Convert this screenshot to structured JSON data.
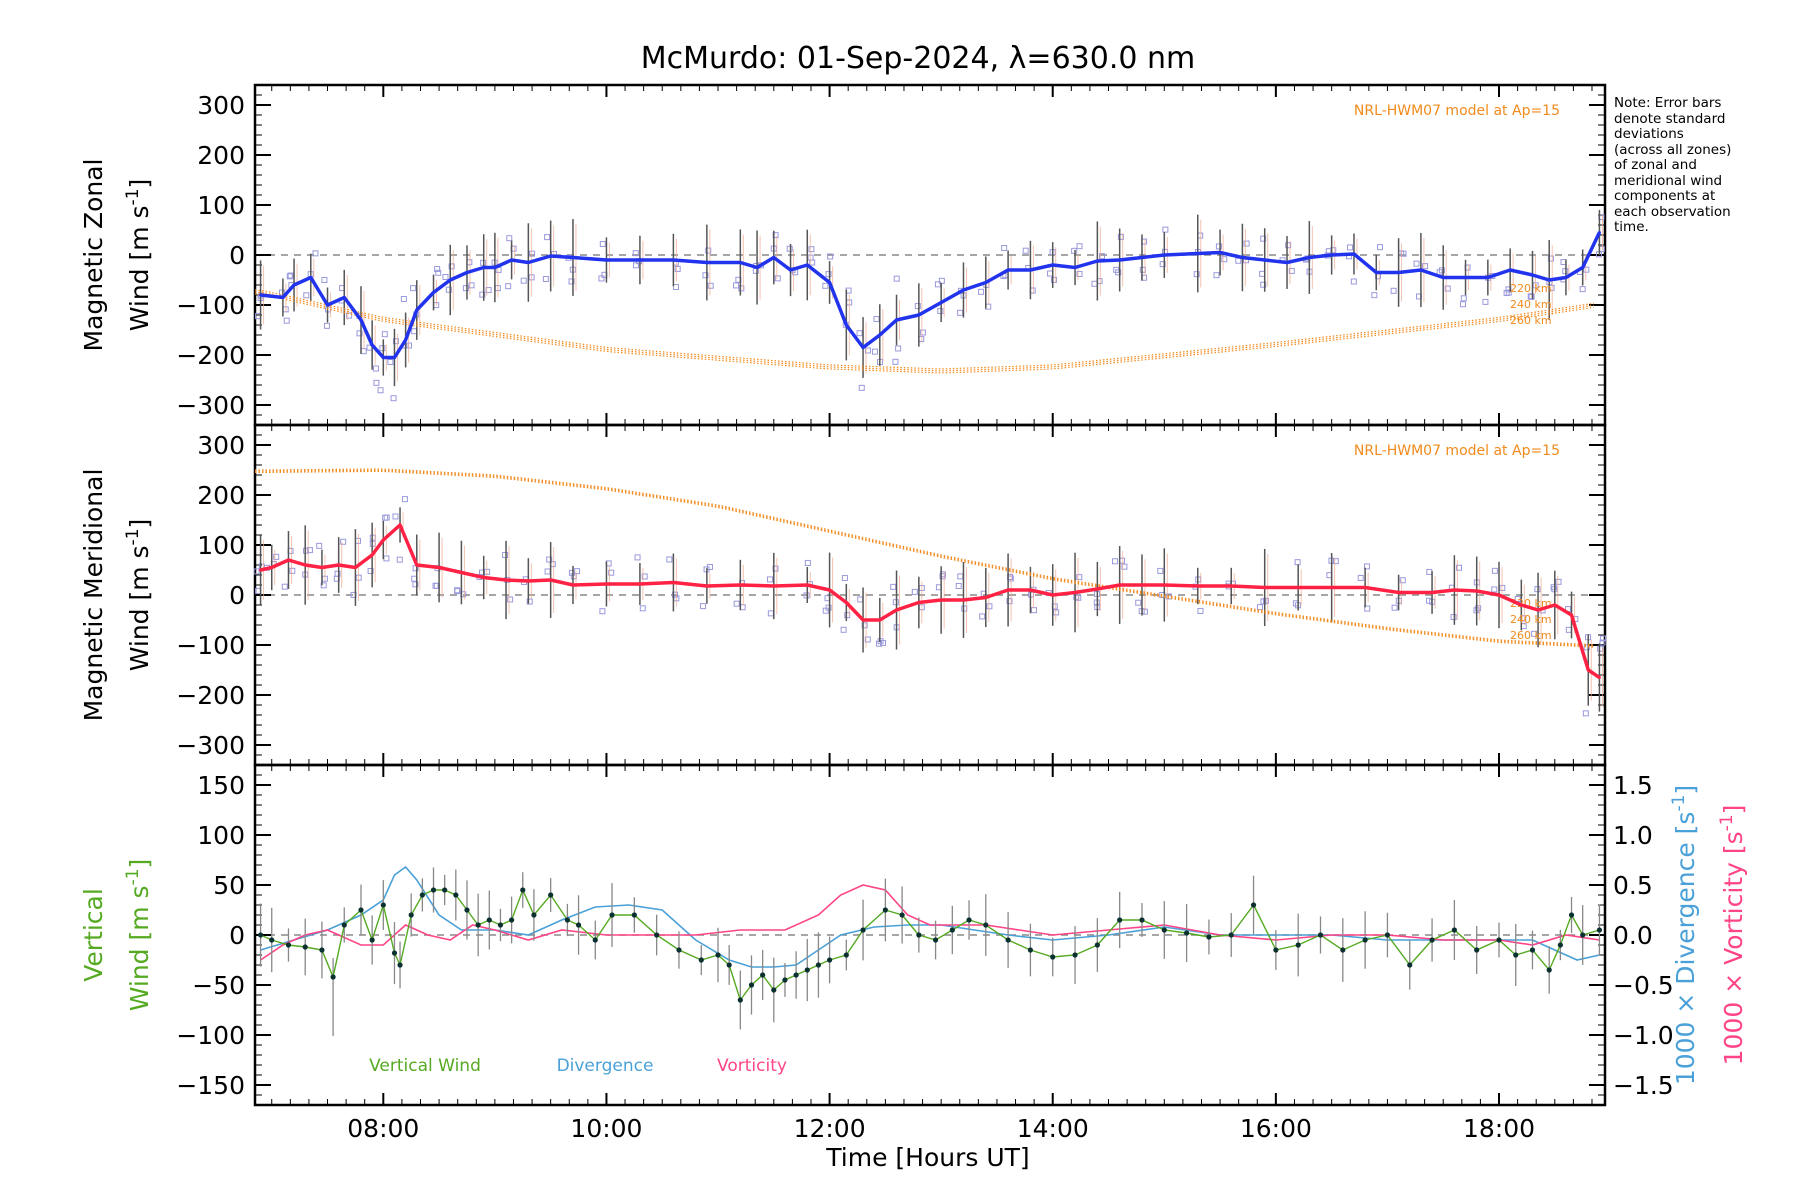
{
  "title": "McMurdo: 01-Sep-2024, λ=630.0 nm",
  "note_lines": [
    "Note: Error bars",
    "denote standard",
    "deviations",
    "(across all zones)",
    "of zonal and",
    "meridional wind",
    "components at",
    "each observation",
    "time."
  ],
  "colors": {
    "zonal": "#2233ee",
    "meridional": "#ff2244",
    "model": "#f28a1c",
    "vertical": "#55aa22",
    "divergence": "#4aa0d8",
    "vorticity": "#ff4488",
    "zone_points": "#9999dd",
    "errorbar": "#555555",
    "axis": "#000000"
  },
  "x_axis": {
    "label": "Time [Hours UT]",
    "range_hours": [
      6.85,
      18.95
    ],
    "ticks": [
      {
        "value": 8,
        "label": "08:00"
      },
      {
        "value": 10,
        "label": "10:00"
      },
      {
        "value": 12,
        "label": "12:00"
      },
      {
        "value": 14,
        "label": "14:00"
      },
      {
        "value": 16,
        "label": "16:00"
      },
      {
        "value": 18,
        "label": "18:00"
      }
    ]
  },
  "chart_data": [
    {
      "type": "line",
      "panel": "zonal",
      "ylabel_line1": "Magnetic Zonal",
      "ylabel_line2": "Wind [m s",
      "ylabel_sup": "-1",
      "ylabel_close": "]",
      "ylim": [
        -340,
        340
      ],
      "yticks": [
        -300,
        -200,
        -100,
        0,
        100,
        200,
        300
      ],
      "model_label": "NRL-HWM07 model at Ap=15",
      "altitude_labels": [
        "220 km",
        "240 km",
        "260 km"
      ],
      "series": [
        {
          "x": [
            6.9,
            7.1,
            7.2,
            7.35,
            7.5,
            7.65,
            7.8,
            7.9,
            8.0,
            8.1,
            8.2,
            8.3,
            8.45,
            8.6,
            8.75,
            8.9,
            9.0,
            9.15,
            9.3,
            9.5,
            9.7,
            10.0,
            10.3,
            10.6,
            10.9,
            11.2,
            11.35,
            11.5,
            11.65,
            11.8,
            12.0,
            12.15,
            12.3,
            12.45,
            12.6,
            12.8,
            13.0,
            13.2,
            13.4,
            13.6,
            13.8,
            14.0,
            14.2,
            14.4,
            14.6,
            14.8,
            15.0,
            15.3,
            15.5,
            15.7,
            15.9,
            16.1,
            16.3,
            16.5,
            16.7,
            16.9,
            17.1,
            17.3,
            17.5,
            17.7,
            17.9,
            18.1,
            18.3,
            18.45,
            18.6,
            18.75,
            18.9
          ],
          "y": [
            -80,
            -85,
            -60,
            -45,
            -100,
            -85,
            -130,
            -180,
            -205,
            -205,
            -170,
            -110,
            -75,
            -50,
            -35,
            -25,
            -25,
            -10,
            -15,
            -2,
            -5,
            -10,
            -10,
            -10,
            -15,
            -15,
            -25,
            -5,
            -30,
            -20,
            -55,
            -140,
            -185,
            -160,
            -130,
            -120,
            -95,
            -70,
            -55,
            -30,
            -30,
            -20,
            -25,
            -12,
            -10,
            -5,
            0,
            3,
            5,
            -5,
            -10,
            -15,
            -5,
            0,
            2,
            -35,
            -35,
            -30,
            -45,
            -45,
            -45,
            -30,
            -40,
            -50,
            -45,
            -25,
            45
          ]
        }
      ],
      "model_zonal_approx": {
        "hours": [
          6.9,
          8,
          10,
          12,
          13,
          14,
          16,
          18,
          18.9
        ],
        "values": [
          -70,
          -125,
          -185,
          -220,
          -228,
          -220,
          -175,
          -125,
          -95
        ]
      }
    },
    {
      "type": "line",
      "panel": "meridional",
      "ylabel_line1": "Magnetic Meridional",
      "ylabel_line2": "Wind [m s",
      "ylabel_sup": "-1",
      "ylabel_close": "]",
      "ylim": [
        -340,
        340
      ],
      "yticks": [
        -300,
        -200,
        -100,
        0,
        100,
        200,
        300
      ],
      "model_label": "NRL-HWM07 model at Ap=15",
      "altitude_labels": [
        "220 km",
        "240 km",
        "260 km"
      ],
      "series": [
        {
          "x": [
            6.9,
            7.0,
            7.15,
            7.3,
            7.45,
            7.6,
            7.75,
            7.9,
            8.0,
            8.15,
            8.3,
            8.5,
            8.7,
            8.9,
            9.1,
            9.3,
            9.5,
            9.7,
            10.0,
            10.3,
            10.6,
            10.9,
            11.2,
            11.5,
            11.8,
            12.0,
            12.15,
            12.3,
            12.45,
            12.6,
            12.8,
            13.0,
            13.2,
            13.4,
            13.6,
            13.8,
            14.0,
            14.2,
            14.4,
            14.6,
            14.8,
            15.0,
            15.3,
            15.6,
            15.9,
            16.2,
            16.5,
            16.8,
            17.1,
            17.4,
            17.6,
            17.8,
            18.0,
            18.2,
            18.35,
            18.5,
            18.65,
            18.8,
            18.9
          ],
          "y": [
            50,
            55,
            70,
            60,
            55,
            60,
            55,
            80,
            110,
            140,
            60,
            55,
            45,
            35,
            30,
            28,
            30,
            20,
            22,
            22,
            25,
            18,
            20,
            18,
            20,
            10,
            -15,
            -50,
            -50,
            -30,
            -15,
            -10,
            -10,
            -5,
            10,
            10,
            0,
            5,
            12,
            20,
            20,
            20,
            18,
            18,
            15,
            15,
            15,
            15,
            5,
            5,
            10,
            8,
            0,
            -20,
            -30,
            -20,
            -40,
            -150,
            -165
          ]
        }
      ],
      "model_meridional_approx": {
        "hours": [
          6.9,
          8,
          9,
          10,
          11,
          12,
          13,
          14,
          15,
          16,
          17,
          18,
          18.9
        ],
        "values": [
          250,
          252,
          240,
          215,
          180,
          130,
          80,
          35,
          0,
          -35,
          -65,
          -90,
          -100
        ]
      }
    },
    {
      "type": "line",
      "panel": "vertical",
      "ylabel_line1": "Vertical",
      "ylabel_line2": "Wind [m s",
      "ylabel_sup": "-1",
      "ylabel_close": "]",
      "ylim": [
        -170,
        170
      ],
      "yticks": [
        -150,
        -100,
        -50,
        0,
        50,
        100,
        150
      ],
      "y2_axis": {
        "ylim": [
          -1.7,
          1.7
        ],
        "ticks": [
          -1.5,
          -1.0,
          -0.5,
          0.0,
          0.5,
          1.0,
          1.5
        ],
        "tick_labels": [
          "−1.5",
          "−1.0",
          "−0.5",
          "0.0",
          "0.5",
          "1.0",
          "1.5"
        ]
      },
      "y2_label_divergence": "1000 × Divergence [s",
      "y2_label_vorticity": "1000 × Vorticity [s",
      "legend": [
        {
          "name": "Vertical Wind"
        },
        {
          "name": "Divergence"
        },
        {
          "name": "Vorticity"
        }
      ],
      "series": [
        {
          "name": "Vertical Wind",
          "x": [
            6.9,
            7.0,
            7.15,
            7.3,
            7.45,
            7.55,
            7.65,
            7.8,
            7.9,
            8.0,
            8.1,
            8.15,
            8.25,
            8.35,
            8.45,
            8.55,
            8.65,
            8.75,
            8.85,
            8.95,
            9.05,
            9.15,
            9.25,
            9.35,
            9.5,
            9.65,
            9.75,
            9.9,
            10.05,
            10.25,
            10.45,
            10.65,
            10.85,
            11.0,
            11.1,
            11.2,
            11.3,
            11.4,
            11.5,
            11.6,
            11.7,
            11.8,
            11.9,
            12.0,
            12.15,
            12.3,
            12.5,
            12.65,
            12.8,
            12.95,
            13.1,
            13.25,
            13.4,
            13.6,
            13.8,
            14.0,
            14.2,
            14.4,
            14.6,
            14.8,
            15.0,
            15.2,
            15.4,
            15.6,
            15.8,
            16.0,
            16.2,
            16.4,
            16.6,
            16.8,
            17.0,
            17.2,
            17.4,
            17.6,
            17.8,
            18.0,
            18.15,
            18.3,
            18.45,
            18.55,
            18.65,
            18.75,
            18.9
          ],
          "y": [
            0,
            -5,
            -10,
            -12,
            -15,
            -42,
            10,
            25,
            -5,
            30,
            -18,
            -30,
            20,
            40,
            45,
            45,
            40,
            25,
            10,
            15,
            10,
            15,
            45,
            20,
            40,
            15,
            10,
            -5,
            20,
            20,
            0,
            -15,
            -25,
            -20,
            -30,
            -65,
            -50,
            -40,
            -55,
            -45,
            -40,
            -35,
            -30,
            -25,
            -20,
            5,
            25,
            20,
            0,
            -5,
            5,
            15,
            10,
            -5,
            -15,
            -22,
            -20,
            -10,
            15,
            15,
            5,
            2,
            -2,
            0,
            30,
            -15,
            -10,
            0,
            -15,
            -5,
            0,
            -30,
            -5,
            5,
            -15,
            -5,
            -20,
            -15,
            -35,
            -10,
            20,
            0,
            5
          ]
        },
        {
          "name": "Divergence",
          "x": [
            6.9,
            7.2,
            7.5,
            7.8,
            8.0,
            8.1,
            8.2,
            8.3,
            8.5,
            8.7,
            9.0,
            9.3,
            9.6,
            9.9,
            10.2,
            10.5,
            10.8,
            11.1,
            11.3,
            11.5,
            11.7,
            11.9,
            12.1,
            12.4,
            12.7,
            13.0,
            13.3,
            13.6,
            14.0,
            14.5,
            15.0,
            15.5,
            16.0,
            16.5,
            17.0,
            17.5,
            18.0,
            18.3,
            18.5,
            18.7,
            18.9
          ],
          "y": [
            -0.15,
            -0.05,
            0.05,
            0.2,
            0.35,
            0.6,
            0.68,
            0.55,
            0.2,
            0.05,
            0.05,
            0.0,
            0.15,
            0.28,
            0.3,
            0.25,
            -0.05,
            -0.25,
            -0.32,
            -0.32,
            -0.3,
            -0.15,
            0.0,
            0.08,
            0.1,
            0.1,
            0.05,
            0.0,
            -0.05,
            0.0,
            0.08,
            0.0,
            0.0,
            0.0,
            -0.05,
            -0.05,
            -0.05,
            -0.05,
            -0.15,
            -0.25,
            -0.2
          ]
        },
        {
          "name": "Vorticity",
          "x": [
            6.9,
            7.1,
            7.3,
            7.5,
            7.8,
            8.0,
            8.2,
            8.4,
            8.6,
            8.8,
            9.0,
            9.3,
            9.6,
            10.0,
            10.4,
            10.8,
            11.2,
            11.6,
            11.9,
            12.1,
            12.3,
            12.5,
            12.7,
            12.9,
            13.1,
            13.4,
            13.7,
            14.0,
            14.5,
            15.0,
            15.5,
            16.0,
            16.5,
            17.0,
            17.5,
            18.0,
            18.3,
            18.6,
            18.9
          ],
          "y": [
            -0.25,
            -0.1,
            0.0,
            0.05,
            -0.1,
            -0.1,
            0.1,
            0.0,
            -0.05,
            0.1,
            0.05,
            -0.05,
            0.05,
            0.0,
            0.0,
            0.0,
            0.05,
            0.05,
            0.2,
            0.4,
            0.5,
            0.45,
            0.2,
            0.1,
            0.1,
            0.1,
            0.05,
            0.0,
            0.05,
            0.1,
            0.0,
            -0.05,
            0.0,
            0.0,
            -0.05,
            -0.05,
            -0.1,
            0.0,
            -0.05
          ]
        }
      ]
    }
  ]
}
